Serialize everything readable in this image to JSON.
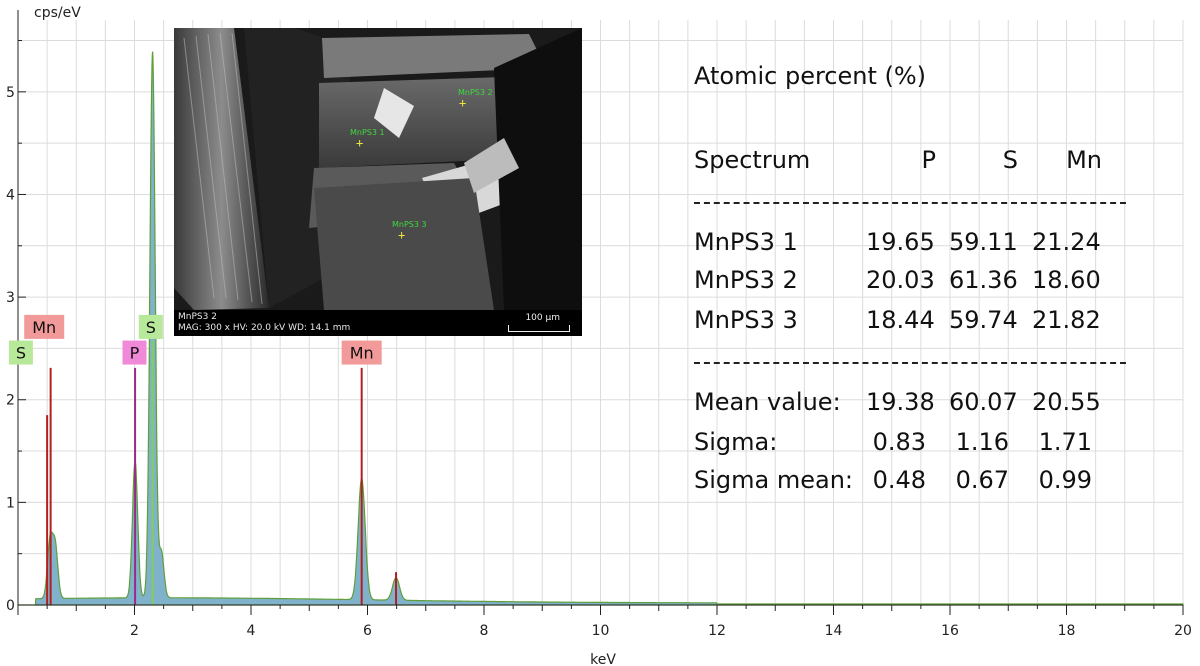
{
  "chart_data": {
    "type": "line",
    "title": "",
    "xlabel": "keV",
    "ylabel": "cps/eV",
    "xlim": [
      0,
      20
    ],
    "ylim": [
      0,
      5.7
    ],
    "x_ticks": [
      2,
      4,
      6,
      8,
      10,
      12,
      14,
      16,
      18,
      20
    ],
    "y_ticks": [
      0,
      1,
      2,
      3,
      4,
      5
    ],
    "grid": true,
    "spectrum_peaks": [
      {
        "x": 0.55,
        "y": 0.55
      },
      {
        "x": 0.64,
        "y": 0.5
      },
      {
        "x": 2.01,
        "y": 1.33
      },
      {
        "x": 2.31,
        "y": 5.32
      },
      {
        "x": 2.46,
        "y": 0.45
      },
      {
        "x": 5.9,
        "y": 1.18
      },
      {
        "x": 6.49,
        "y": 0.22
      }
    ],
    "element_lines": [
      {
        "element": "S",
        "x": 0.15,
        "height": 0.0,
        "color": "#b8e89a"
      },
      {
        "element": "Mn",
        "x": 0.5,
        "height": 1.85,
        "color": "#f29a9a"
      },
      {
        "element": "Mn",
        "x": 0.56,
        "height": 2.31,
        "color": "#f29a9a"
      },
      {
        "element": "P",
        "x": 2.01,
        "height": 2.31,
        "color": "#f08ad8"
      },
      {
        "element": "S",
        "x": 2.31,
        "height": 2.58,
        "color": "#b8e89a"
      },
      {
        "element": "Mn",
        "x": 5.9,
        "height": 2.31,
        "color": "#f29a9a"
      },
      {
        "element": "Mn",
        "x": 6.49,
        "height": 0.32,
        "color": "#f29a9a"
      }
    ],
    "element_labels": [
      {
        "text": "S",
        "x": 0.05,
        "y": 2.45,
        "color": "#b8e89a"
      },
      {
        "text": "Mn",
        "x": 0.45,
        "y": 2.7,
        "color": "#f29a9a"
      },
      {
        "text": "P",
        "x": 2.0,
        "y": 2.45,
        "color": "#f08ad8"
      },
      {
        "text": "S",
        "x": 2.28,
        "y": 2.7,
        "color": "#b8e89a"
      },
      {
        "text": "Mn",
        "x": 5.9,
        "y": 2.45,
        "color": "#f29a9a"
      }
    ]
  },
  "inset": {
    "label_line1": "MnPS3 2",
    "label_line2": "MAG: 300 x  HV: 20.0 kV  WD: 14.1 mm",
    "scale": "100 µm",
    "tags": [
      "MnPS3 1",
      "MnPS3 2",
      "MnPS3 3"
    ]
  },
  "table": {
    "title": "Atomic percent (%)",
    "headers": [
      "Spectrum",
      "P",
      "S",
      "Mn"
    ],
    "rows": [
      [
        "MnPS3 1",
        "19.65",
        "59.11",
        "21.24"
      ],
      [
        "MnPS3 2",
        "20.03",
        "61.36",
        "18.60"
      ],
      [
        "MnPS3 3",
        "18.44",
        "59.74",
        "21.82"
      ]
    ],
    "stats": [
      [
        "Mean value:",
        "19.38",
        "60.07",
        "20.55"
      ],
      [
        "Sigma:",
        "0.83",
        "1.16",
        "1.71"
      ],
      [
        "Sigma mean:",
        "0.48",
        "0.67",
        "0.99"
      ]
    ]
  }
}
